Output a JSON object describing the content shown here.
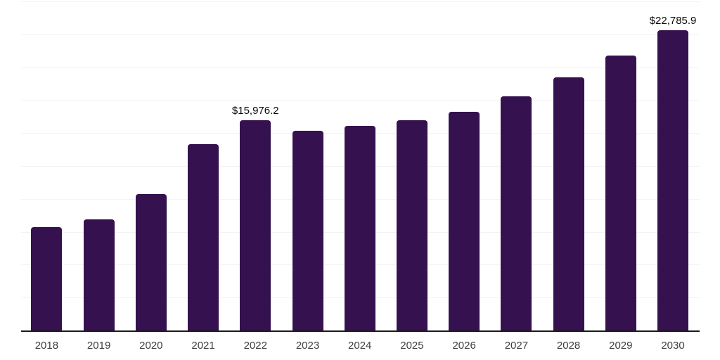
{
  "chart_data": {
    "type": "bar",
    "title": "",
    "xlabel": "",
    "ylabel": "",
    "categories": [
      "2018",
      "2019",
      "2020",
      "2021",
      "2022",
      "2023",
      "2024",
      "2025",
      "2026",
      "2027",
      "2028",
      "2029",
      "2030"
    ],
    "values": [
      7830,
      8420,
      10390,
      14180,
      15976.2,
      15190,
      15570,
      15990,
      16630,
      17810,
      19240,
      20900,
      22785.9
    ],
    "point_labels": [
      "",
      "",
      "",
      "",
      "$15,976.2",
      "",
      "",
      "",
      "",
      "",
      "",
      "",
      "$22,785.9"
    ],
    "ylim": [
      0,
      25000
    ],
    "gridline_interval": 2500,
    "grid": true,
    "legend_position": "none",
    "bar_color": "#35124f",
    "colors": {
      "background": "#ffffff",
      "gridline": "#f2f2f2",
      "axis_line": "#1a1a1a",
      "tick_label": "#3d3d3d",
      "data_label": "#0a0a0a"
    }
  }
}
